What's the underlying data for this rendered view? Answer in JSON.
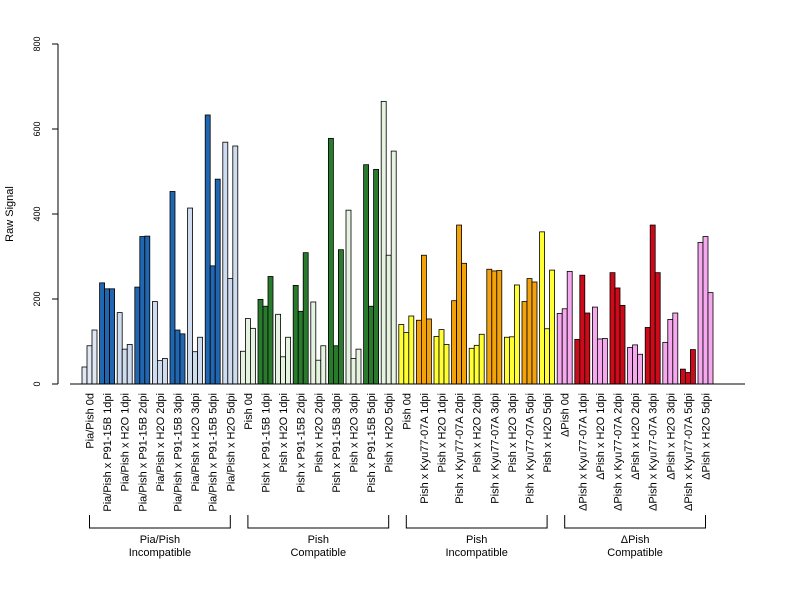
{
  "chart_data": {
    "type": "bar",
    "title": "",
    "ylabel": "Raw Signal",
    "ylim": [
      0,
      800
    ],
    "yticks": [
      0,
      200,
      400,
      600,
      800
    ],
    "grid": false,
    "categories": [
      "Pia/Pish 0d",
      "Pia/Pish x P91-15B 1dpi",
      "Pia/Pish x H2O 1dpi",
      "Pia/Pish x P91-15B 2dpi",
      "Pia/Pish x H2O 2dpi",
      "Pia/Pish x P91-15B 3dpi",
      "Pia/Pish x H2O 3dpi",
      "Pia/Pish x P91-15B 5dpi",
      "Pia/Pish x H2O 5dpi",
      "Pish 0d",
      "Pish x P91-15B 1dpi",
      "Pish x H2O 1dpi",
      "Pish x P91-15B 2dpi",
      "Pish x H2O 2dpi",
      "Pish x P91-15B 3dpi",
      "Pish x H2O 3dpi",
      "Pish x P91-15B 5dpi",
      "Pish x H2O 5dpi",
      "Pish 0d",
      "Pish x Kyu77-07A 1dpi",
      "Pish x H2O 1dpi",
      "Pish x Kyu77-07A 2dpi",
      "Pish x H2O 2dpi",
      "Pish x Kyu77-07A 3dpi",
      "Pish x H2O 3dpi",
      "Pish x Kyu77-07A 5dpi",
      "Pish x H2O 5dpi",
      "ΔPish 0d",
      "ΔPish x Kyu77-07A 1dpi",
      "ΔPish x H2O 1dpi",
      "ΔPish x Kyu77-07A 2dpi",
      "ΔPish x H2O 2dpi",
      "ΔPish x Kyu77-07A 3dpi",
      "ΔPish x H2O 3dpi",
      "ΔPish x Kyu77-07A 5dpi",
      "ΔPish x H2O 5dpi"
    ],
    "values": [
      [
        40,
        90,
        127
      ],
      [
        238,
        224,
        224
      ],
      [
        168,
        82,
        93
      ],
      [
        228,
        347,
        348
      ],
      [
        194,
        55,
        60
      ],
      [
        453,
        127,
        118
      ],
      [
        414,
        76,
        110
      ],
      [
        633,
        278,
        482
      ],
      [
        569,
        248,
        560
      ],
      [
        77,
        154,
        131
      ],
      [
        199,
        183,
        253
      ],
      [
        164,
        64,
        110
      ],
      [
        232,
        171,
        309
      ],
      [
        193,
        56,
        90
      ],
      [
        578,
        90,
        316
      ],
      [
        409,
        60,
        82
      ],
      [
        516,
        183,
        505
      ],
      [
        665,
        303,
        548
      ],
      [
        140,
        121,
        160
      ],
      [
        150,
        303,
        153
      ],
      [
        112,
        128,
        93
      ],
      [
        196,
        374,
        284
      ],
      [
        84,
        91,
        117
      ],
      [
        270,
        266,
        267
      ],
      [
        110,
        111,
        233
      ],
      [
        194,
        248,
        240
      ],
      [
        358,
        130,
        268
      ],
      [
        166,
        177,
        265
      ],
      [
        105,
        256,
        167
      ],
      [
        181,
        106,
        107
      ],
      [
        262,
        226,
        185
      ],
      [
        86,
        92,
        70
      ],
      [
        133,
        374,
        262
      ],
      [
        98,
        152,
        167
      ],
      [
        35,
        27,
        81
      ],
      [
        333,
        347,
        215
      ]
    ],
    "bar_colors": [
      "#e0e8f4",
      "#2066b0",
      "#cfdcef",
      "#2066b0",
      "#cfdcef",
      "#2066b0",
      "#cfdcef",
      "#2066b0",
      "#cfdcef",
      "#e6f3e0",
      "#2a7a2e",
      "#e6f3e0",
      "#2a7a2e",
      "#e6f3e0",
      "#2a7a2e",
      "#e6f3e0",
      "#2a7a2e",
      "#e6f3e0",
      "#ffff33",
      "#f4a20a",
      "#ffff33",
      "#f4a20a",
      "#ffff33",
      "#f4a20a",
      "#ffff33",
      "#f4a20a",
      "#ffff33",
      "#f5a8ee",
      "#cc0a1a",
      "#f5a8ee",
      "#cc0a1a",
      "#f5a8ee",
      "#cc0a1a",
      "#f5a8ee",
      "#cc0a1a",
      "#f5a8ee"
    ],
    "groups": [
      {
        "line1": "Pia/Pish",
        "line2": "Incompatible",
        "start": 0,
        "end": 8
      },
      {
        "line1": "Pish",
        "line2": "Compatible",
        "start": 9,
        "end": 17
      },
      {
        "line1": "Pish",
        "line2": "Incompatible",
        "start": 18,
        "end": 26
      },
      {
        "line1": "ΔPish",
        "line2": "Compatible",
        "start": 27,
        "end": 35
      }
    ]
  }
}
